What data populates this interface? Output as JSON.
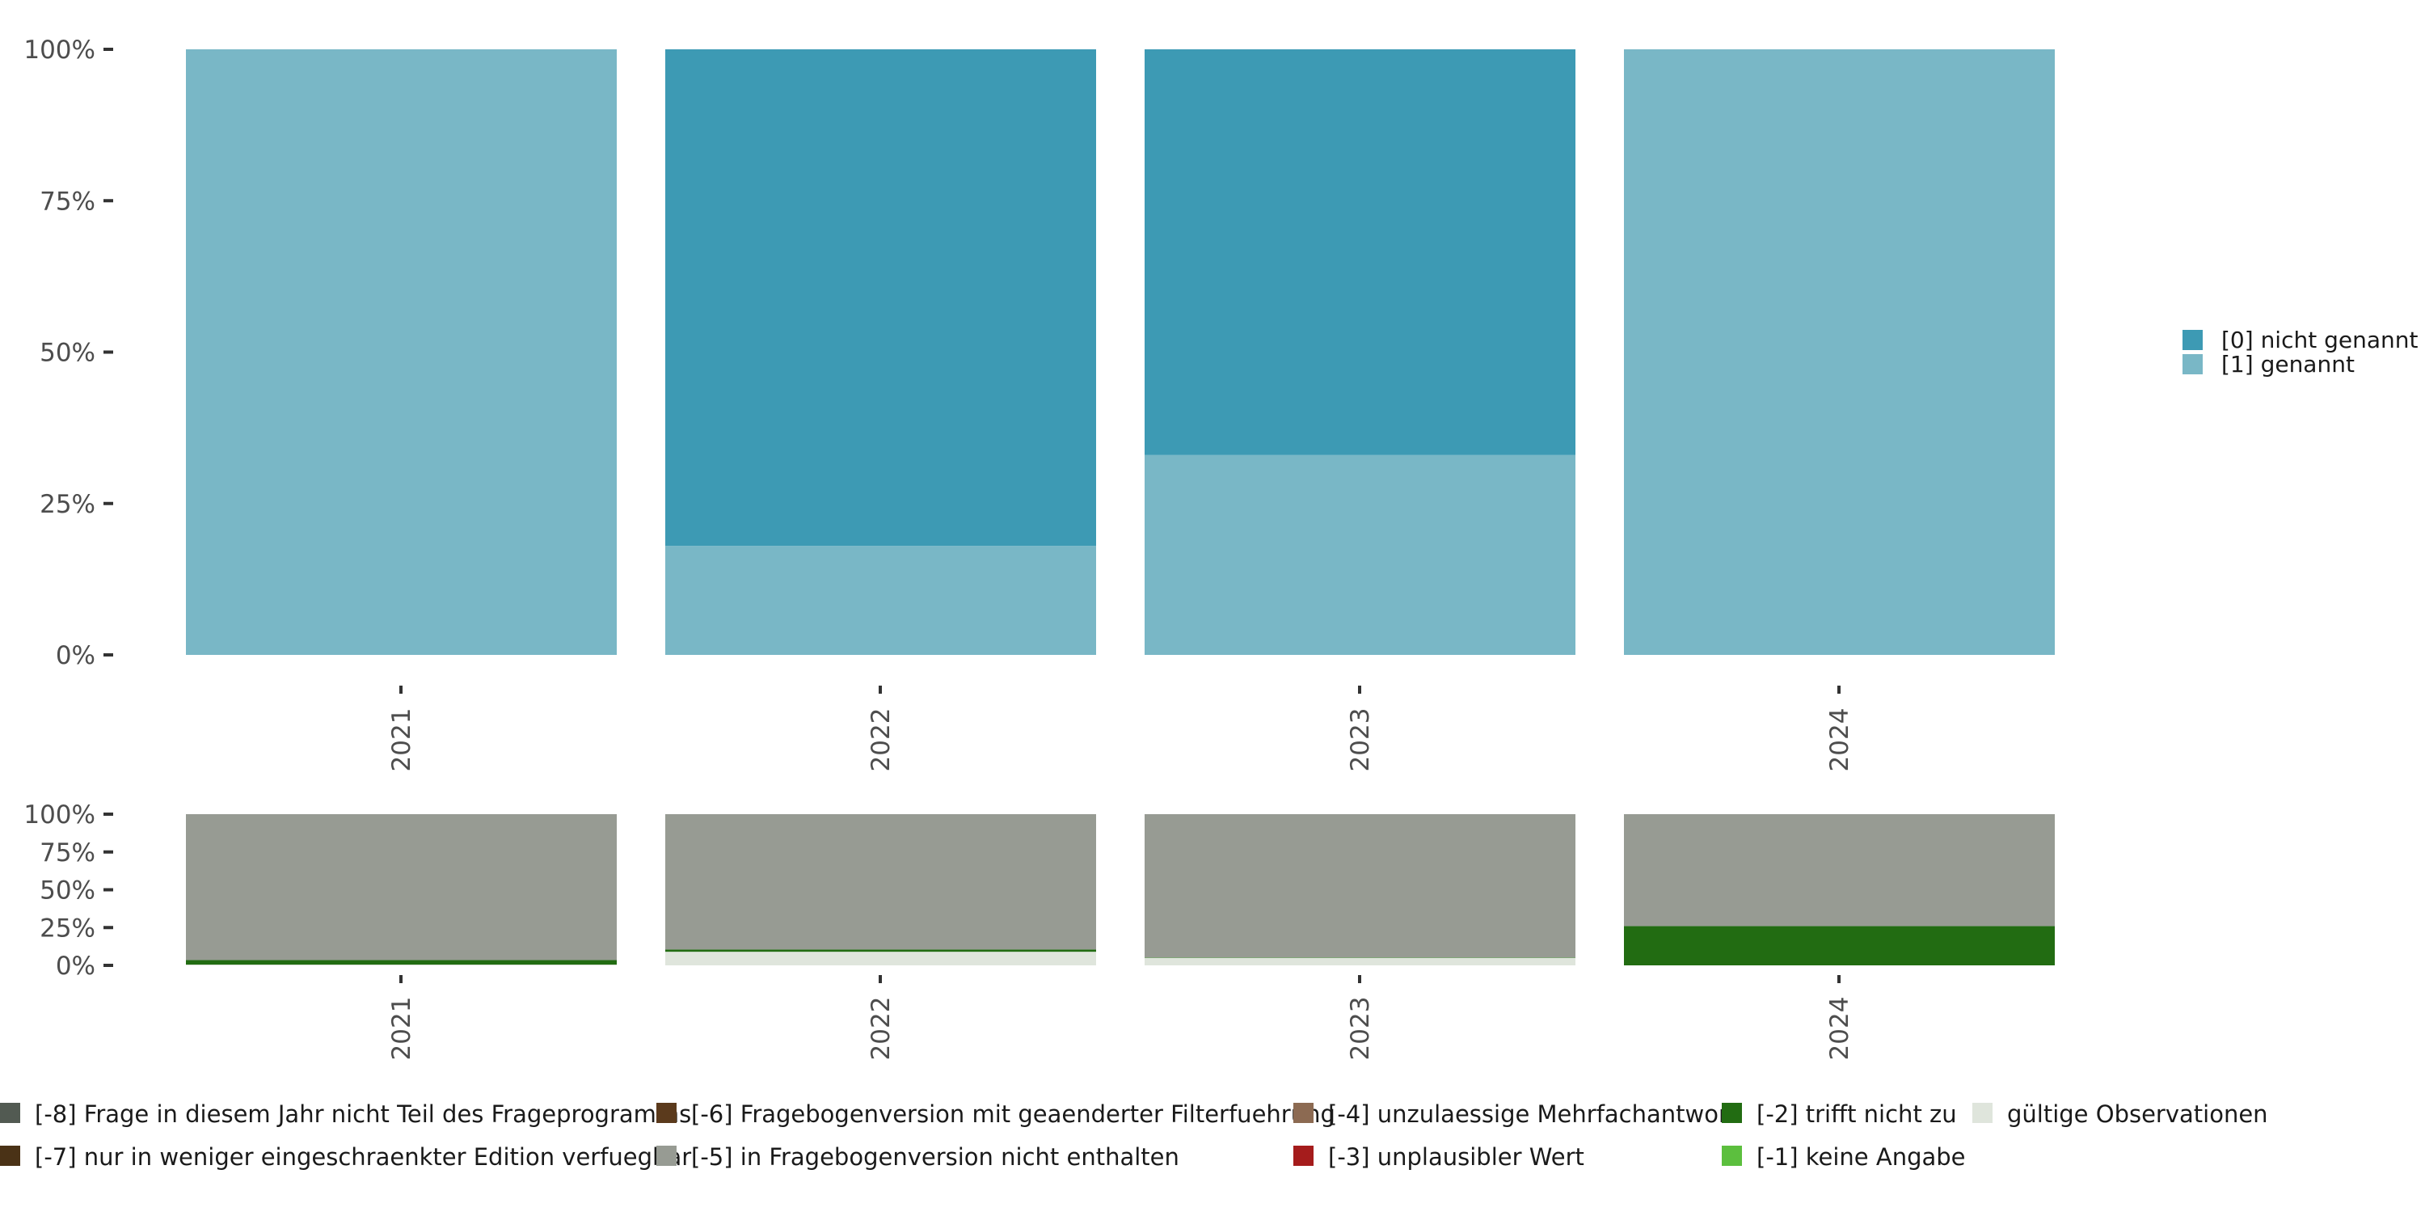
{
  "chart_data": [
    {
      "type": "bar",
      "stacked": true,
      "categories": [
        "2021",
        "2022",
        "2023",
        "2024"
      ],
      "y_ticks": [
        "0%",
        "25%",
        "50%",
        "75%",
        "100%"
      ],
      "ylim": [
        0,
        100
      ],
      "series": [
        {
          "name": "[1] genannt",
          "color": "#79b7c6",
          "values": [
            100,
            18,
            33,
            100
          ]
        },
        {
          "name": "[0] nicht genannt",
          "color": "#3d9ab4",
          "values": [
            0,
            82,
            67,
            0
          ]
        }
      ],
      "legend": {
        "position": "right",
        "entries": [
          {
            "label": "[0] nicht genannt",
            "color": "#3d9ab4"
          },
          {
            "label": "[1] genannt",
            "color": "#79b7c6"
          }
        ]
      }
    },
    {
      "type": "bar",
      "stacked": true,
      "categories": [
        "2021",
        "2022",
        "2023",
        "2024"
      ],
      "y_ticks": [
        "0%",
        "25%",
        "50%",
        "75%",
        "100%"
      ],
      "ylim": [
        0,
        100
      ],
      "series": [
        {
          "name": "gültige Observationen",
          "color": "#dfe5dc",
          "values": [
            0.5,
            9,
            5,
            0
          ]
        },
        {
          "name": "[-2] trifft nicht zu",
          "color": "#226c12",
          "values": [
            3,
            1.5,
            0.3,
            26
          ]
        },
        {
          "name": "[-5] in Fragebogenversion nicht enthalten",
          "color": "#979b93",
          "values": [
            96.5,
            89.5,
            94.7,
            74
          ]
        }
      ],
      "legend": {
        "position": "bottom",
        "entries": [
          {
            "label": "[-8] Frage in diesem Jahr nicht Teil des Frageprogramms",
            "color": "#525a52"
          },
          {
            "label": "[-7] nur in weniger eingeschraenkter Edition verfuegbar",
            "color": "#4a3216"
          },
          {
            "label": "[-6] Fragebogenversion mit geaenderter Filterfuehrung",
            "color": "#5b3a1c"
          },
          {
            "label": "[-5] in Fragebogenversion nicht enthalten",
            "color": "#979b93"
          },
          {
            "label": "[-4] unzulaessige Mehrfachantwort",
            "color": "#8c6a52"
          },
          {
            "label": "[-3] unplausibler Wert",
            "color": "#a51c1c"
          },
          {
            "label": "[-2] trifft nicht zu",
            "color": "#226c12"
          },
          {
            "label": "[-1] keine Angabe",
            "color": "#5cbf3e"
          },
          {
            "label": "gültige Observationen",
            "color": "#dfe5dc"
          }
        ]
      }
    }
  ]
}
